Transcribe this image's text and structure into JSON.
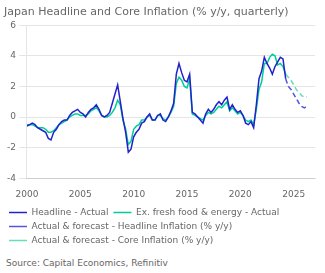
{
  "chart_data": {
    "type": "line",
    "title": "Japan Headline and Core Inflation (% y/y, quarterly)",
    "annotations": [
      "Source: Capital Economics, Refinitiv"
    ],
    "xlim": [
      2000,
      2027
    ],
    "ylim": [
      -4,
      6
    ],
    "xticks": [
      2000,
      2005,
      2010,
      2015,
      2020,
      2025
    ],
    "yticks": [
      -4,
      -2,
      0,
      2,
      4,
      6
    ],
    "grid": "y",
    "legend": "bottom",
    "series": [
      {
        "name": "Headline - Actual",
        "color": "#2222cc",
        "line_style": "solid",
        "x": [
          2000.0,
          2000.25,
          2000.5,
          2000.75,
          2001.0,
          2001.25,
          2001.5,
          2001.75,
          2002.0,
          2002.25,
          2002.5,
          2002.75,
          2003.0,
          2003.25,
          2003.5,
          2003.75,
          2004.0,
          2004.25,
          2004.5,
          2004.75,
          2005.0,
          2005.25,
          2005.5,
          2005.75,
          2006.0,
          2006.25,
          2006.5,
          2006.75,
          2007.0,
          2007.25,
          2007.5,
          2007.75,
          2008.0,
          2008.25,
          2008.5,
          2008.75,
          2009.0,
          2009.25,
          2009.5,
          2009.75,
          2010.0,
          2010.25,
          2010.5,
          2010.75,
          2011.0,
          2011.25,
          2011.5,
          2011.75,
          2012.0,
          2012.25,
          2012.5,
          2012.75,
          2013.0,
          2013.25,
          2013.5,
          2013.75,
          2014.0,
          2014.25,
          2014.5,
          2014.75,
          2015.0,
          2015.25,
          2015.5,
          2015.75,
          2016.0,
          2016.25,
          2016.5,
          2016.75,
          2017.0,
          2017.25,
          2017.5,
          2017.75,
          2018.0,
          2018.25,
          2018.5,
          2018.75,
          2019.0,
          2019.25,
          2019.5,
          2019.75,
          2020.0,
          2020.25,
          2020.5,
          2020.75,
          2021.0,
          2021.25,
          2021.5,
          2021.75,
          2022.0,
          2022.25,
          2022.5,
          2022.75,
          2023.0,
          2023.25,
          2023.5,
          2023.75,
          2024.0,
          2024.25
        ],
        "values": [
          -0.6,
          -0.5,
          -0.4,
          -0.5,
          -0.7,
          -0.8,
          -0.9,
          -1.0,
          -1.4,
          -1.5,
          -1.0,
          -0.8,
          -0.5,
          -0.3,
          -0.2,
          -0.2,
          0.1,
          0.3,
          0.4,
          0.5,
          0.3,
          0.2,
          0.0,
          0.3,
          0.5,
          0.6,
          0.8,
          0.5,
          0.1,
          0.0,
          0.1,
          0.3,
          0.9,
          1.5,
          2.1,
          1.0,
          -0.1,
          -1.0,
          -2.3,
          -2.1,
          -1.3,
          -1.0,
          -0.8,
          -0.4,
          -0.3,
          0.0,
          0.2,
          -0.2,
          -0.2,
          0.1,
          0.2,
          -0.2,
          -0.3,
          0.0,
          0.4,
          0.9,
          2.8,
          3.5,
          2.9,
          2.4,
          2.3,
          2.8,
          0.3,
          0.2,
          0.0,
          -0.2,
          -0.4,
          0.2,
          0.5,
          0.3,
          0.5,
          0.8,
          1.0,
          0.8,
          1.1,
          1.3,
          0.5,
          0.8,
          0.5,
          0.3,
          0.4,
          0.1,
          -0.4,
          -0.5,
          -0.3,
          -0.7,
          0.8,
          2.5,
          3.0,
          3.9,
          3.5,
          3.2,
          2.8,
          3.3,
          3.6,
          3.9,
          3.8,
          2.5
        ]
      },
      {
        "name": "Ex. fresh food & energy - Actual",
        "color": "#00cc99",
        "line_style": "solid",
        "x": [
          2000.0,
          2000.25,
          2000.5,
          2000.75,
          2001.0,
          2001.25,
          2001.5,
          2001.75,
          2002.0,
          2002.25,
          2002.5,
          2002.75,
          2003.0,
          2003.25,
          2003.5,
          2003.75,
          2004.0,
          2004.25,
          2004.5,
          2004.75,
          2005.0,
          2005.25,
          2005.5,
          2005.75,
          2006.0,
          2006.25,
          2006.5,
          2006.75,
          2007.0,
          2007.25,
          2007.5,
          2007.75,
          2008.0,
          2008.25,
          2008.5,
          2008.75,
          2009.0,
          2009.25,
          2009.5,
          2009.75,
          2010.0,
          2010.25,
          2010.5,
          2010.75,
          2011.0,
          2011.25,
          2011.5,
          2011.75,
          2012.0,
          2012.25,
          2012.5,
          2012.75,
          2013.0,
          2013.25,
          2013.5,
          2013.75,
          2014.0,
          2014.25,
          2014.5,
          2014.75,
          2015.0,
          2015.25,
          2015.5,
          2015.75,
          2016.0,
          2016.25,
          2016.5,
          2016.75,
          2017.0,
          2017.25,
          2017.5,
          2017.75,
          2018.0,
          2018.25,
          2018.5,
          2018.75,
          2019.0,
          2019.25,
          2019.5,
          2019.75,
          2020.0,
          2020.25,
          2020.5,
          2020.75,
          2021.0,
          2021.25,
          2021.5,
          2021.75,
          2022.0,
          2022.25,
          2022.5,
          2022.75,
          2023.0,
          2023.25,
          2023.5,
          2023.75,
          2024.0,
          2024.25
        ],
        "values": [
          -0.5,
          -0.5,
          -0.5,
          -0.6,
          -0.7,
          -0.7,
          -0.7,
          -0.8,
          -1.0,
          -1.0,
          -0.9,
          -0.7,
          -0.5,
          -0.4,
          -0.3,
          -0.2,
          0.0,
          0.1,
          0.2,
          0.2,
          0.1,
          0.1,
          0.1,
          0.2,
          0.4,
          0.5,
          0.6,
          0.4,
          0.1,
          0.0,
          0.0,
          0.1,
          0.3,
          0.6,
          1.1,
          0.8,
          -0.2,
          -0.8,
          -1.8,
          -1.6,
          -0.8,
          -0.6,
          -0.5,
          -0.2,
          -0.2,
          0.0,
          0.1,
          -0.2,
          -0.2,
          0.1,
          0.1,
          -0.1,
          -0.2,
          0.0,
          0.3,
          0.7,
          2.2,
          2.6,
          2.4,
          2.0,
          1.9,
          2.5,
          0.2,
          0.1,
          0.0,
          -0.1,
          -0.2,
          0.1,
          0.3,
          0.2,
          0.3,
          0.5,
          0.7,
          0.6,
          0.8,
          1.0,
          0.4,
          0.6,
          0.4,
          0.2,
          0.3,
          0.1,
          -0.2,
          -0.3,
          -0.2,
          -0.5,
          0.5,
          1.8,
          2.3,
          3.5,
          3.5,
          3.9,
          4.1,
          4.0,
          3.4,
          3.5,
          3.3,
          2.8
        ]
      },
      {
        "name": "Actual & forecast - Headline Inflation (% y/y)",
        "color": "#5555dd",
        "line_style": "dashed",
        "x": [
          2024.25,
          2024.5,
          2024.75,
          2025.0,
          2025.25,
          2025.5,
          2025.75,
          2026.0,
          2026.25
        ],
        "values": [
          2.5,
          2.0,
          1.8,
          1.5,
          1.2,
          0.9,
          0.7,
          0.6,
          0.7
        ]
      },
      {
        "name": "Actual & forecast - Core Inflation (% y/y)",
        "color": "#66ddbb",
        "line_style": "dashed",
        "x": [
          2024.25,
          2024.5,
          2024.75,
          2025.0,
          2025.25,
          2025.5,
          2025.75,
          2026.0,
          2026.25
        ],
        "values": [
          2.8,
          2.6,
          2.4,
          2.1,
          1.8,
          1.6,
          1.4,
          1.3,
          1.3
        ]
      }
    ]
  }
}
